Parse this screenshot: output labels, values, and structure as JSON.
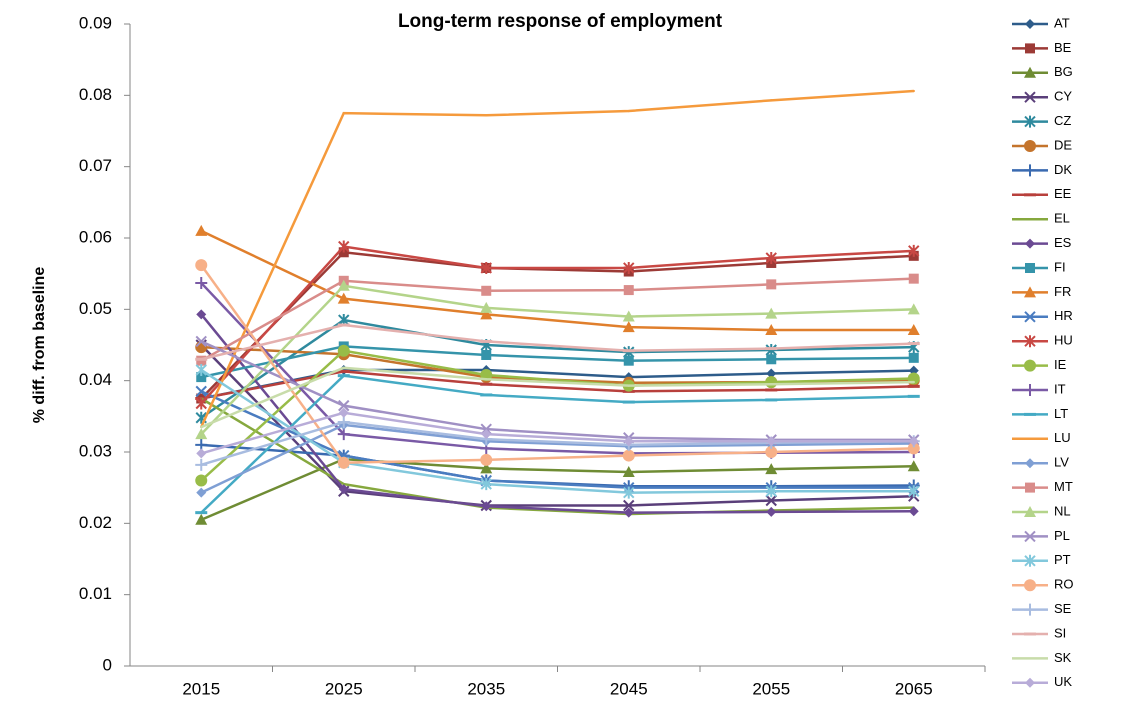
{
  "chart_data": {
    "type": "line",
    "title": "Long-term response of employment",
    "y_label": "% diff. from baseline",
    "categories": [
      "2015",
      "2025",
      "2035",
      "2045",
      "2055",
      "2065"
    ],
    "ylim": [
      0,
      0.09
    ],
    "yticks": [
      0,
      0.01,
      0.02,
      0.03,
      0.04,
      0.05,
      0.06,
      0.07,
      0.08,
      0.09
    ],
    "grid": false,
    "legend": "right",
    "series": [
      {
        "name": "AT",
        "color": "#2e5c8a",
        "marker": "diamond",
        "values": [
          0.0375,
          0.0415,
          0.0415,
          0.0405,
          0.041,
          0.0414
        ]
      },
      {
        "name": "BE",
        "color": "#9c3a36",
        "marker": "square",
        "values": [
          0.0375,
          0.058,
          0.0558,
          0.0553,
          0.0565,
          0.0575
        ]
      },
      {
        "name": "BG",
        "color": "#6f8c34",
        "marker": "triangle",
        "values": [
          0.0205,
          0.029,
          0.0277,
          0.0272,
          0.0276,
          0.028
        ]
      },
      {
        "name": "CY",
        "color": "#5a3f7a",
        "marker": "x",
        "values": [
          0.045,
          0.0245,
          0.0225,
          0.0225,
          0.0232,
          0.0238
        ]
      },
      {
        "name": "CZ",
        "color": "#2f8a9e",
        "marker": "star",
        "values": [
          0.0348,
          0.0485,
          0.045,
          0.044,
          0.0443,
          0.0447
        ]
      },
      {
        "name": "DE",
        "color": "#c4742c",
        "marker": "circle",
        "values": [
          0.0447,
          0.0437,
          0.0405,
          0.0397,
          0.0398,
          0.04
        ]
      },
      {
        "name": "DK",
        "color": "#3a6ab0",
        "marker": "plus",
        "values": [
          0.031,
          0.0295,
          0.026,
          0.0252,
          0.0252,
          0.0253
        ]
      },
      {
        "name": "EE",
        "color": "#b8403c",
        "marker": "dash",
        "values": [
          0.0375,
          0.0413,
          0.0395,
          0.0385,
          0.0387,
          0.0392
        ]
      },
      {
        "name": "EL",
        "color": "#86a83e",
        "marker": "none",
        "values": [
          0.0375,
          0.0255,
          0.0222,
          0.0213,
          0.0218,
          0.0222
        ]
      },
      {
        "name": "ES",
        "color": "#6b4a93",
        "marker": "diamond",
        "values": [
          0.0493,
          0.0248,
          0.0224,
          0.0215,
          0.0216,
          0.0217
        ]
      },
      {
        "name": "FI",
        "color": "#3594aa",
        "marker": "square",
        "values": [
          0.0405,
          0.0448,
          0.0436,
          0.0428,
          0.043,
          0.0432
        ]
      },
      {
        "name": "FR",
        "color": "#e07f2c",
        "marker": "triangle",
        "values": [
          0.061,
          0.0515,
          0.0493,
          0.0475,
          0.0471,
          0.0471
        ]
      },
      {
        "name": "HR",
        "color": "#4a7cc0",
        "marker": "x",
        "values": [
          0.0385,
          0.0295,
          0.026,
          0.025,
          0.025,
          0.025
        ]
      },
      {
        "name": "HU",
        "color": "#c84844",
        "marker": "star",
        "values": [
          0.0368,
          0.0588,
          0.0558,
          0.0558,
          0.0572,
          0.0582
        ]
      },
      {
        "name": "IE",
        "color": "#98bc48",
        "marker": "circle",
        "values": [
          0.026,
          0.0442,
          0.0408,
          0.0393,
          0.0398,
          0.0403
        ]
      },
      {
        "name": "IT",
        "color": "#7a5aa6",
        "marker": "plus",
        "values": [
          0.0537,
          0.0325,
          0.0305,
          0.0298,
          0.0299,
          0.03
        ]
      },
      {
        "name": "LT",
        "color": "#44aac4",
        "marker": "dash",
        "values": [
          0.0215,
          0.0407,
          0.038,
          0.037,
          0.0373,
          0.0378
        ]
      },
      {
        "name": "LU",
        "color": "#f59a3c",
        "marker": "none",
        "values": [
          0.0335,
          0.0775,
          0.0772,
          0.0778,
          0.0793,
          0.0806
        ]
      },
      {
        "name": "LV",
        "color": "#7f9fd4",
        "marker": "diamond",
        "values": [
          0.0243,
          0.0338,
          0.0315,
          0.0308,
          0.031,
          0.0312
        ]
      },
      {
        "name": "MT",
        "color": "#d98c8a",
        "marker": "square",
        "values": [
          0.0428,
          0.054,
          0.0526,
          0.0527,
          0.0535,
          0.0543
        ]
      },
      {
        "name": "NL",
        "color": "#b4d48a",
        "marker": "triangle",
        "values": [
          0.0325,
          0.0533,
          0.0502,
          0.049,
          0.0494,
          0.05
        ]
      },
      {
        "name": "PL",
        "color": "#a090c4",
        "marker": "x",
        "values": [
          0.0455,
          0.0365,
          0.0332,
          0.032,
          0.0317,
          0.0317
        ]
      },
      {
        "name": "PT",
        "color": "#82c8dc",
        "marker": "star",
        "values": [
          0.0415,
          0.0285,
          0.0255,
          0.0243,
          0.0245,
          0.0245
        ]
      },
      {
        "name": "RO",
        "color": "#f7b088",
        "marker": "circle",
        "values": [
          0.0562,
          0.0285,
          0.0289,
          0.0295,
          0.03,
          0.0305
        ]
      },
      {
        "name": "SE",
        "color": "#a8bce0",
        "marker": "plus",
        "values": [
          0.0282,
          0.0342,
          0.0318,
          0.031,
          0.0313,
          0.0315
        ]
      },
      {
        "name": "SI",
        "color": "#e4b0ae",
        "marker": "dash",
        "values": [
          0.043,
          0.0478,
          0.0455,
          0.0442,
          0.0445,
          0.0452
        ]
      },
      {
        "name": "SK",
        "color": "#c8dcaa",
        "marker": "none",
        "values": [
          0.0335,
          0.0418,
          0.0402,
          0.0393,
          0.0395,
          0.0398
        ]
      },
      {
        "name": "UK",
        "color": "#b8acd8",
        "marker": "diamond",
        "values": [
          0.0298,
          0.0355,
          0.0325,
          0.0315,
          0.0315,
          0.0315
        ]
      }
    ]
  }
}
